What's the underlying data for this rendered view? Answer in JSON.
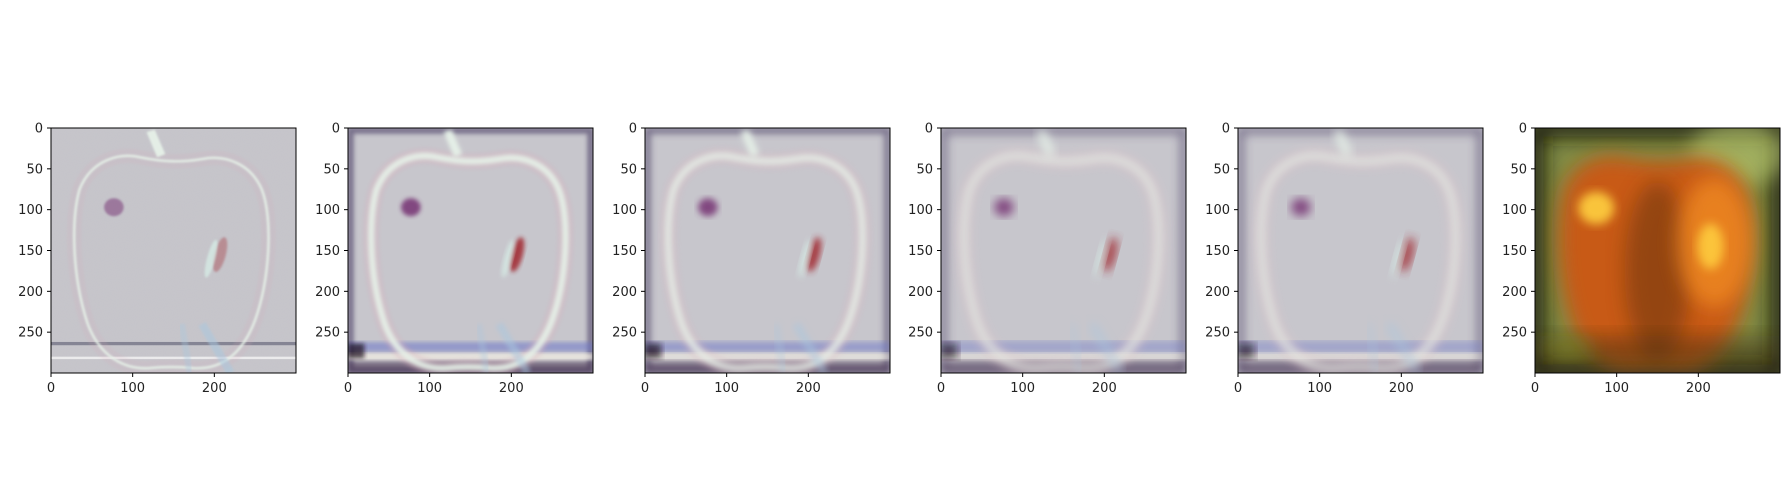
{
  "figure": {
    "panels": [
      {
        "kind": "laplacian",
        "level": 0
      },
      {
        "kind": "laplacian",
        "level": 1
      },
      {
        "kind": "laplacian",
        "level": 2
      },
      {
        "kind": "laplacian",
        "level": 3
      },
      {
        "kind": "laplacian",
        "level": 4
      },
      {
        "kind": "gaussian-residual",
        "level": 5
      }
    ],
    "x_ticks": [
      0,
      100,
      200
    ],
    "y_ticks": [
      0,
      50,
      100,
      150,
      200,
      250
    ],
    "data_extent": [
      0,
      300
    ]
  },
  "colors": {
    "laplacian_bg": "#c7c6cc",
    "laplacian_edge": "#e6f1e8",
    "laplacian_dark": "#3a2d58",
    "bruise_dark": "#7a3b78",
    "bruise_red": "#a0282e",
    "residual_bg": "#7f8b45",
    "residual_apple": "#c85a14",
    "residual_highlight": "#ffd040",
    "axis": "#000000"
  }
}
